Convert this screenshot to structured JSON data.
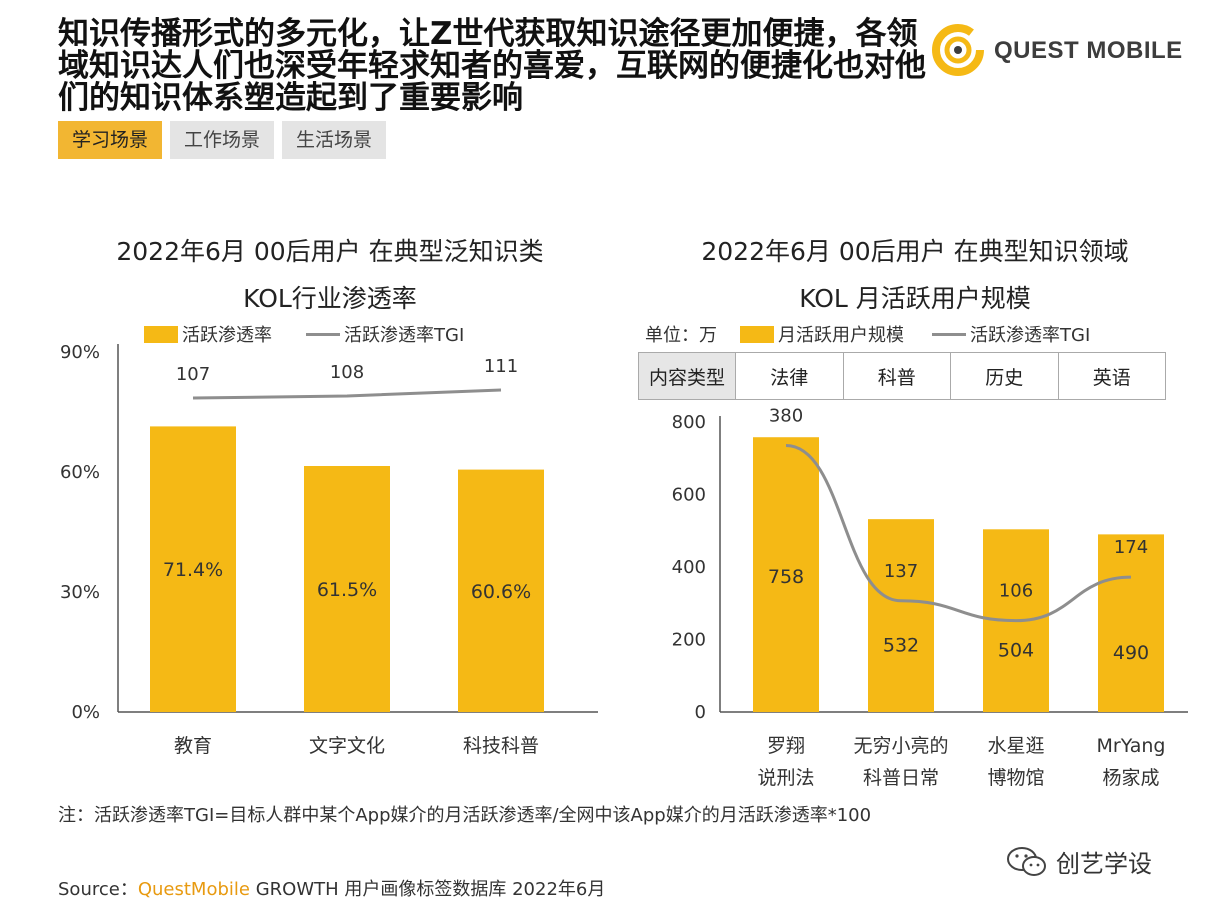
{
  "headline": [
    "知识传播形式的多元化，让Z世代获取知识途径更加便捷，各领",
    "域知识达人们也深受年轻求知者的喜爱，互联网的便捷化也对他",
    "们的知识体系塑造起到了重要影响"
  ],
  "logo": {
    "text": "QUEST MOBILE",
    "icon": "quest-mobile-logo-icon",
    "accent": "#f5b915"
  },
  "tabs": [
    {
      "label": "学习场景",
      "active": true
    },
    {
      "label": "工作场景",
      "active": false
    },
    {
      "label": "生活场景",
      "active": false
    }
  ],
  "chart_data": [
    {
      "type": "bar",
      "title": [
        "2022年6月 00后用户 在典型泛知识类",
        "KOL行业渗透率"
      ],
      "legend": {
        "bar": "活跃渗透率",
        "line": "活跃渗透率TGI"
      },
      "categories": [
        "教育",
        "文字文化",
        "科技科普"
      ],
      "y_ticks": [
        "0%",
        "30%",
        "60%",
        "90%"
      ],
      "ylim": [
        0,
        90
      ],
      "series": [
        {
          "name": "活跃渗透率",
          "values": [
            71.4,
            61.5,
            60.6
          ],
          "labels": [
            "71.4%",
            "61.5%",
            "60.6%"
          ],
          "color": "#f5b915"
        },
        {
          "name": "活跃渗透率TGI",
          "type": "line",
          "values": [
            107,
            108,
            111
          ],
          "color": "#8e8e8e"
        }
      ],
      "grid": false
    },
    {
      "type": "bar",
      "title": [
        "2022年6月 00后用户 在典型知识领域",
        "KOL 月活跃用户规模"
      ],
      "unit": "单位：万",
      "legend": {
        "bar": "月活跃用户规模",
        "line": "活跃渗透率TGI"
      },
      "content_type": {
        "header": "内容类型",
        "items": [
          "法律",
          "科普",
          "历史",
          "英语"
        ]
      },
      "categories": [
        [
          "罗翔",
          "说刑法"
        ],
        [
          "无穷小亮的",
          "科普日常"
        ],
        [
          "水星逛",
          "博物馆"
        ],
        [
          "MrYang",
          "杨家成"
        ]
      ],
      "y_ticks": [
        "0",
        "200",
        "400",
        "600",
        "800"
      ],
      "ylim": [
        0,
        800
      ],
      "series": [
        {
          "name": "月活跃用户规模",
          "values": [
            758,
            532,
            504,
            490
          ],
          "labels": [
            "758",
            "532",
            "504",
            "490"
          ],
          "color": "#f5b915"
        },
        {
          "name": "活跃渗透率TGI",
          "type": "line",
          "values": [
            380,
            137,
            106,
            174
          ],
          "color": "#8e8e8e"
        }
      ],
      "grid": false
    }
  ],
  "note": "注：活跃渗透率TGI=目标人群中某个App媒介的月活跃渗透率/全网中该App媒介的月活跃渗透率*100",
  "source": {
    "prefix": "Source：",
    "brand": "QuestMobile",
    "rest": " GROWTH 用户画像标签数据库 2022年6月"
  },
  "watermark": {
    "icon": "wechat-icon",
    "text": "创艺学设"
  }
}
